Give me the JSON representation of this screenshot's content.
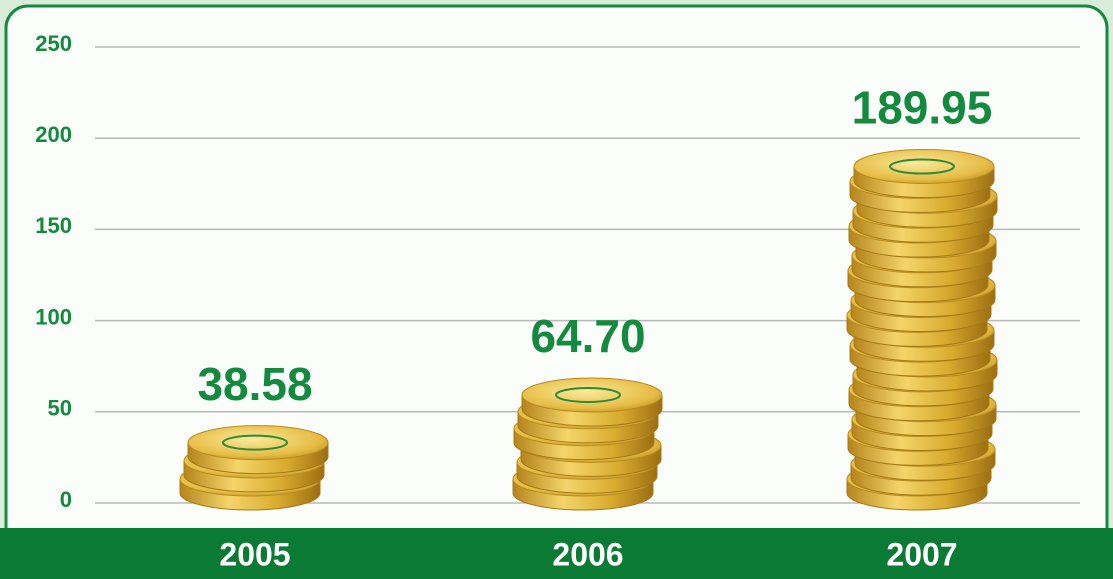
{
  "chart_data": {
    "type": "bar",
    "categories": [
      "2005",
      "2006",
      "2007"
    ],
    "values": [
      38.58,
      64.7,
      189.95
    ],
    "value_labels": [
      "38.58",
      "64.70",
      "189.95"
    ],
    "color": "#d9ab2e",
    "ylim": [
      0,
      250
    ],
    "yticks": [
      0,
      50,
      100,
      150,
      200,
      250
    ],
    "grid": true
  }
}
